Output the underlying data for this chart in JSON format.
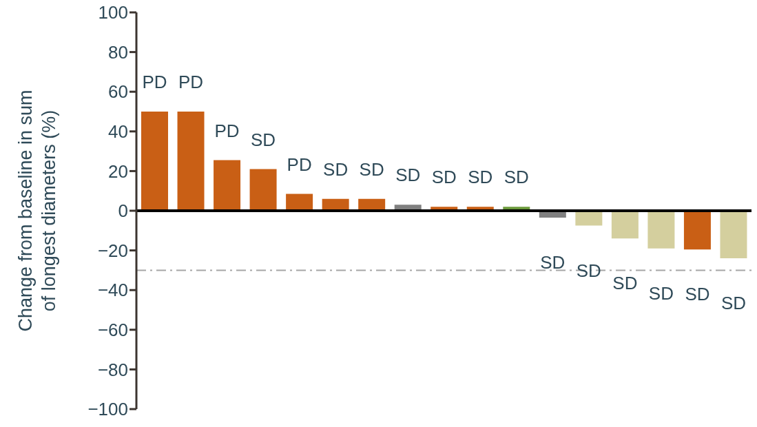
{
  "chart_data": {
    "type": "bar",
    "ylabel": "Change from baseline in sum of longest diameters (%)",
    "categories": [
      null,
      null,
      null,
      null,
      null,
      null,
      null,
      null,
      null,
      null,
      null,
      null,
      null,
      null,
      null,
      null,
      null
    ],
    "values": [
      50,
      50,
      25.5,
      21,
      8.5,
      6,
      6,
      3,
      2,
      2,
      2,
      -3.5,
      -7.5,
      -14,
      -19,
      -19.5,
      -24
    ],
    "colors": [
      "#c95f15",
      "#c95f15",
      "#c95f15",
      "#c95f15",
      "#c95f15",
      "#c95f15",
      "#c95f15",
      "#808080",
      "#c95f15",
      "#c95f15",
      "#6b9a3b",
      "#808080",
      "#d4cf9e",
      "#d4cf9e",
      "#d4cf9e",
      "#c95f15",
      "#d4cf9e"
    ],
    "value_labels": [
      "PD",
      "PD",
      "PD",
      "SD",
      "PD",
      "SD",
      "SD",
      "SD",
      "SD",
      "SD",
      "SD",
      "SD",
      "SD",
      "SD",
      "SD",
      "SD",
      "SD"
    ],
    "ylim": [
      -100,
      100
    ],
    "yticks": [
      -100,
      -80,
      -60,
      -40,
      -20,
      0,
      20,
      40,
      60,
      80,
      100
    ],
    "ref_lines": [
      {
        "axis": "y",
        "value": 0,
        "color": "#000000",
        "line_style": "solid"
      },
      {
        "axis": "y",
        "value": -30,
        "color": "#a6a6a6",
        "line_style": "dashdot"
      }
    ],
    "tick_labels": "y",
    "grid": false,
    "legend": false
  }
}
